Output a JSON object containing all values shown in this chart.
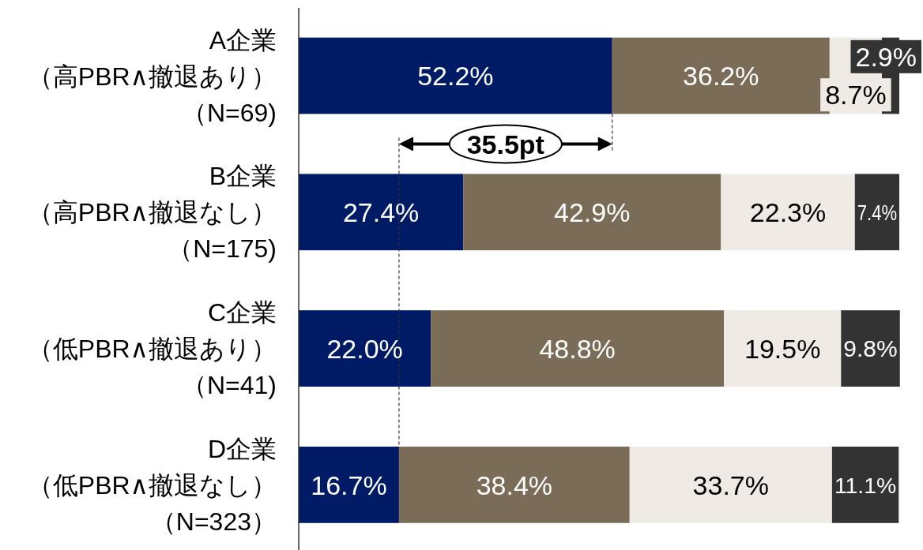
{
  "chart_data": {
    "type": "bar",
    "orientation": "horizontal",
    "stacked": true,
    "categories": [
      "A企業（高PBR∧撤退あり）（N=69)",
      "B企業（高PBR∧撤退なし）（N=175)",
      "C企業（低PBR∧撤退あり）（N=41)",
      "D企業（低PBR∧撤退なし）（N=323）"
    ],
    "series": [
      {
        "color": "#001b66",
        "values": [
          52.2,
          27.4,
          22.0,
          16.7
        ],
        "value_labels": [
          "52.2%",
          "27.4%",
          "22.0%",
          "16.7%"
        ]
      },
      {
        "color": "#7b6c57",
        "values": [
          36.2,
          42.9,
          48.8,
          38.4
        ],
        "value_labels": [
          "36.2%",
          "42.9%",
          "48.8%",
          "38.4%"
        ]
      },
      {
        "color": "#efebe4",
        "values": [
          8.7,
          22.3,
          19.5,
          33.7
        ],
        "value_labels": [
          "8.7%",
          "22.3%",
          "19.5%",
          "33.7%"
        ]
      },
      {
        "color": "#333333",
        "values": [
          2.9,
          7.4,
          9.8,
          11.1
        ],
        "value_labels": [
          "2.9%",
          "7.4%",
          "9.8%",
          "11.1%"
        ]
      }
    ],
    "xlim": [
      0,
      100
    ],
    "tick_labels": "y",
    "annotations": [
      "35.5pt"
    ]
  }
}
